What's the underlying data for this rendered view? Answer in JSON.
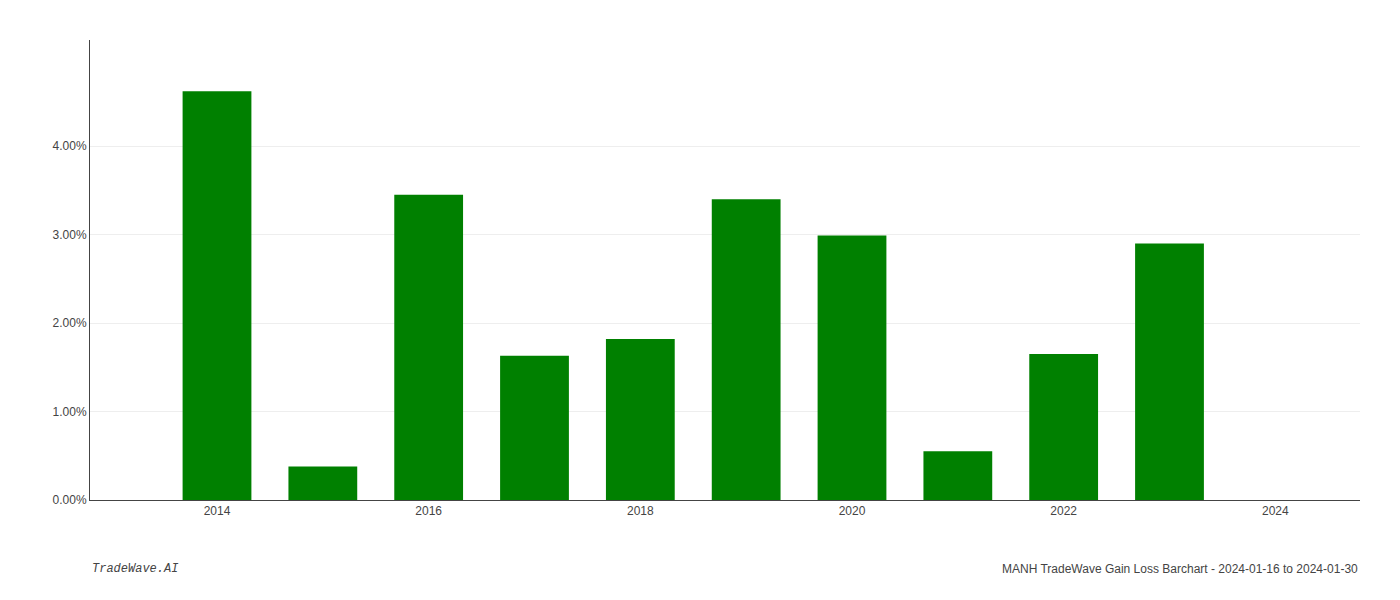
{
  "chart_data": {
    "type": "bar",
    "x": [
      2014,
      2015,
      2016,
      2017,
      2018,
      2019,
      2020,
      2021,
      2022,
      2023
    ],
    "values": [
      0.0462,
      0.0038,
      0.0345,
      0.0163,
      0.0182,
      0.034,
      0.0299,
      0.0055,
      0.0165,
      0.029
    ],
    "color": "#008000",
    "xlim": [
      2012.8,
      2024.8
    ],
    "xticks": [
      2014,
      2016,
      2018,
      2020,
      2022,
      2024
    ],
    "ylim": [
      0,
      0.052
    ],
    "yticks": [
      {
        "value": 0.0,
        "label": "0.00%"
      },
      {
        "value": 0.01,
        "label": "1.00%"
      },
      {
        "value": 0.02,
        "label": "2.00%"
      },
      {
        "value": 0.03,
        "label": "3.00%"
      },
      {
        "value": 0.04,
        "label": "4.00%"
      }
    ],
    "grid": true,
    "annotations": [
      "TradeWave.AI",
      "MANH TradeWave Gain Loss Barchart - 2024-01-16 to 2024-01-30"
    ]
  }
}
